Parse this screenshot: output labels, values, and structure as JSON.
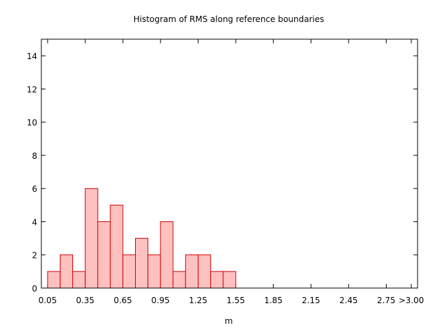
{
  "chart_data": {
    "type": "bar",
    "title": "Histogram of RMS along reference boundaries",
    "xlabel": "m",
    "ylabel": "",
    "ylim": [
      0,
      15
    ],
    "yticks": [
      "0",
      "2",
      "4",
      "6",
      "8",
      "10",
      "12",
      "14"
    ],
    "xticks": [
      "0.05",
      "0.35",
      "0.65",
      "0.95",
      "1.25",
      "1.55",
      "1.85",
      "2.15",
      "2.45",
      "2.75",
      ">3.00"
    ],
    "categories": [
      "0.10",
      "0.20",
      "0.30",
      "0.40",
      "0.50",
      "0.60",
      "0.70",
      "0.80",
      "0.90",
      "1.00",
      "1.10",
      "1.20",
      "1.30",
      "1.40",
      "1.50"
    ],
    "values": [
      1,
      2,
      1,
      6,
      4,
      5,
      2,
      3,
      2,
      4,
      1,
      2,
      2,
      1,
      1
    ],
    "bar_fill": "#ffc0c0",
    "bar_stroke": "#cc0000",
    "grid": false
  }
}
